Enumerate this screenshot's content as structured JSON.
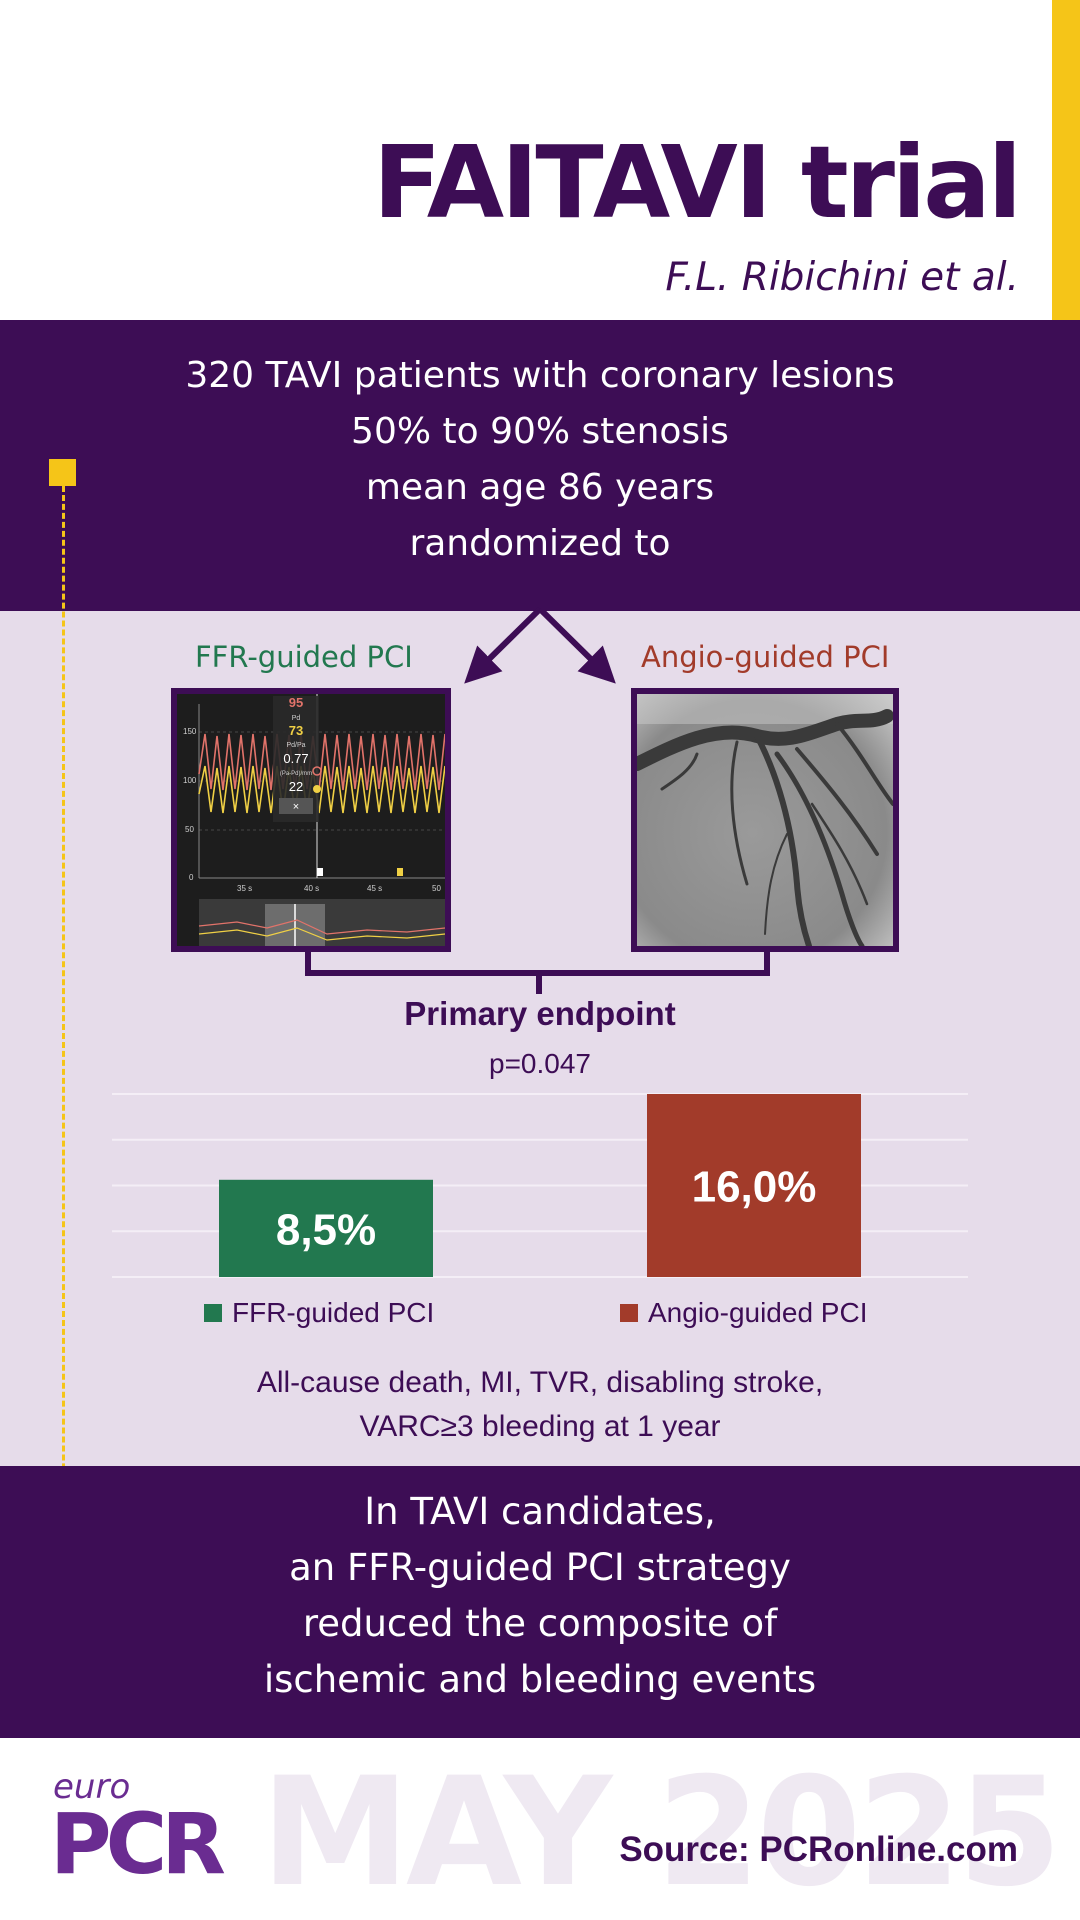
{
  "header": {
    "title": "FAITAVI trial",
    "authors": "F.L. Ribichini et al."
  },
  "population": {
    "lines": [
      "320 TAVI patients with coronary lesions",
      "50% to 90% stenosis",
      "mean age 86 years",
      "randomized to"
    ]
  },
  "arms": {
    "ffr_label": "FFR-guided PCI",
    "angio_label": "Angio-guided PCI",
    "ffr_panel": {
      "aortic_value": "95",
      "pd_label": "Pd",
      "pd_value": "73",
      "ratio_label": "Pd/Pa",
      "ratio_value": "0.77",
      "mmhg_label": "(Pa-Pd)/mm",
      "mmhg_value": "22",
      "close_glyph": "×",
      "y_ticks": [
        "150",
        "100",
        "50",
        "0"
      ],
      "x_ticks": [
        "35 s",
        "40 s",
        "45 s",
        "50"
      ]
    }
  },
  "endpoint": {
    "title": "Primary endpoint",
    "p_value": "p=0.047",
    "description_lines": [
      "All-cause death, MI, TVR, disabling stroke,",
      "VARC≥3 bleeding at 1 year"
    ]
  },
  "chart_data": {
    "type": "bar",
    "categories": [
      "FFR-guided PCI",
      "Angio-guided PCI"
    ],
    "values": [
      8.5,
      16.0
    ],
    "value_labels": [
      "8,5%",
      "16,0%"
    ],
    "colors": [
      "#22784f",
      "#a23b2a"
    ],
    "title": "Primary endpoint",
    "subtitle": "p=0.047",
    "ylim": [
      0,
      16
    ],
    "grid": true,
    "legend_placement": "bottom"
  },
  "conclusion": {
    "lines": [
      "In TAVI candidates,",
      "an FFR-guided PCI strategy",
      "reduced the composite of",
      "ischemic and bleeding events"
    ]
  },
  "footer": {
    "logo_euro": "euro",
    "logo_pcr": "PCR",
    "watermark": "MAY 2025",
    "source": "Source: PCRonline.com"
  },
  "colors": {
    "brand_purple": "#3d0d55",
    "accent_yellow": "#f5c518",
    "panel_lilac": "#e6dcea",
    "ffr_green": "#22784f",
    "angio_red": "#a23b2a"
  }
}
